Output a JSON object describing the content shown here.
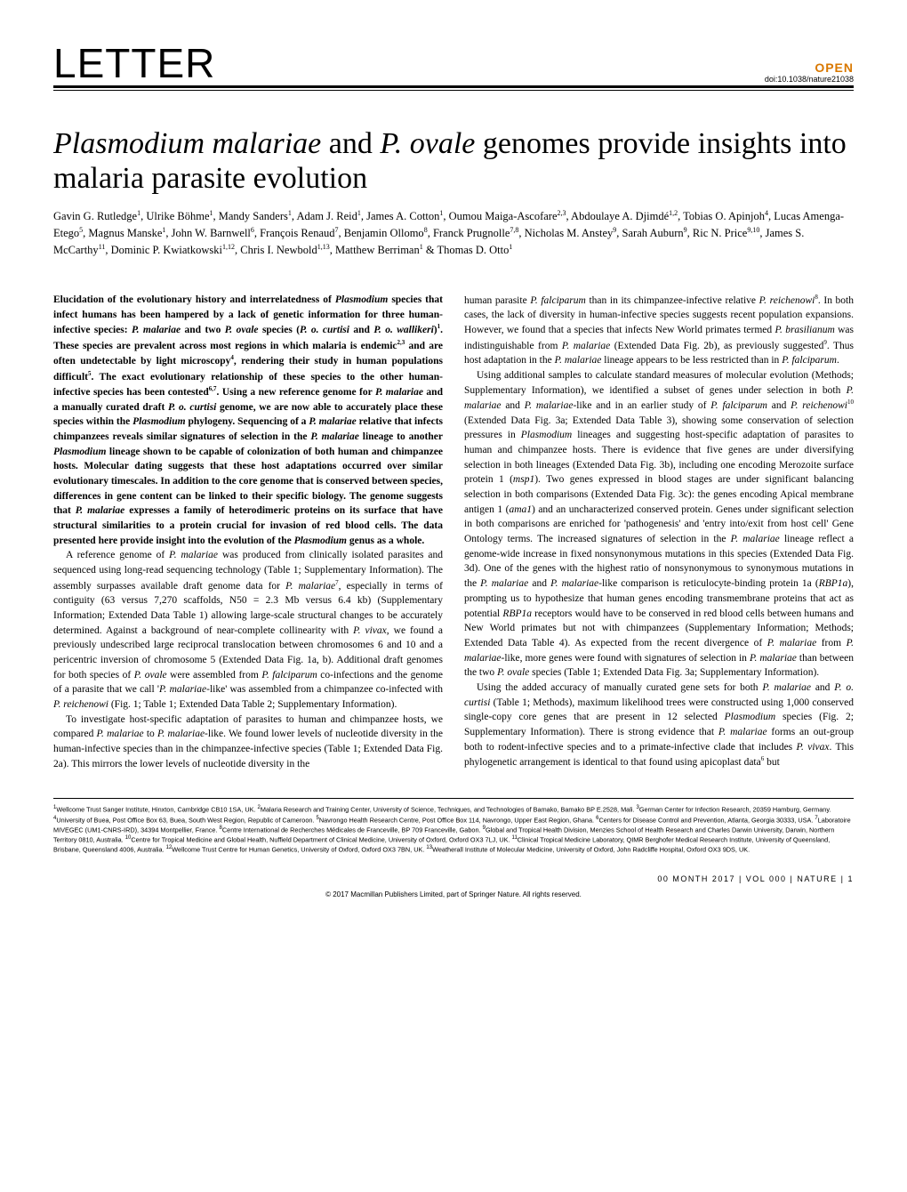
{
  "header": {
    "section_label": "LETTER",
    "open_label": "OPEN",
    "doi": "doi:10.1038/nature21038"
  },
  "title_parts": {
    "p1": "Plasmodium malariae",
    "p2": " and ",
    "p3": "P. ovale",
    "p4": " genomes provide insights into malaria parasite evolution"
  },
  "authors_html": "Gavin G. Rutledge<sup>1</sup>, Ulrike Böhme<sup>1</sup>, Mandy Sanders<sup>1</sup>, Adam J. Reid<sup>1</sup>, James A. Cotton<sup>1</sup>, Oumou Maiga-Ascofare<sup>2,3</sup>, Abdoulaye A. Djimdé<sup>1,2</sup>, Tobias O. Apinjoh<sup>4</sup>, Lucas Amenga-Etego<sup>5</sup>, Magnus Manske<sup>1</sup>, John W. Barnwell<sup>6</sup>, François Renaud<sup>7</sup>, Benjamin Ollomo<sup>8</sup>, Franck Prugnolle<sup>7,8</sup>, Nicholas M. Anstey<sup>9</sup>, Sarah Auburn<sup>9</sup>, Ric N. Price<sup>9,10</sup>, James S. McCarthy<sup>11</sup>, Dominic P. Kwiatkowski<sup>1,12</sup>, Chris I. Newbold<sup>1,13</sup>, Matthew Berriman<sup>1</sup> & Thomas D. Otto<sup>1</sup>",
  "column1": {
    "abstract_html": "Elucidation of the evolutionary history and interrelatedness of <span class=\"italic\">Plasmodium</span> species that infect humans has been hampered by a lack of genetic information for three human-infective species: <span class=\"italic\">P. malariae</span> and two <span class=\"italic\">P. ovale</span> species (<span class=\"italic\">P. o. curtisi</span> and <span class=\"italic\">P. o. wallikeri</span>)<sup>1</sup>. These species are prevalent across most regions in which malaria is endemic<sup>2,3</sup> and are often undetectable by light microscopy<sup>4</sup>, rendering their study in human populations difficult<sup>5</sup>. The exact evolutionary relationship of these species to the other human-infective species has been contested<sup>6,7</sup>. Using a new reference genome for <span class=\"italic\">P. malariae</span> and a manually curated draft <span class=\"italic\">P. o. curtisi</span> genome, we are now able to accurately place these species within the <span class=\"italic\">Plasmodium</span> phylogeny. Sequencing of a <span class=\"italic\">P. malariae</span> relative that infects chimpanzees reveals similar signatures of selection in the <span class=\"italic\">P. malariae</span> lineage to another <span class=\"italic\">Plasmodium</span> lineage shown to be capable of colonization of both human and chimpanzee hosts. Molecular dating suggests that these host adaptations occurred over similar evolutionary timescales. In addition to the core genome that is conserved between species, differences in gene content can be linked to their specific biology. The genome suggests that <span class=\"italic\">P. malariae</span> expresses a family of heterodimeric proteins on its surface that have structural similarities to a protein crucial for invasion of red blood cells. The data presented here provide insight into the evolution of the <span class=\"italic\">Plasmodium</span> genus as a whole.",
    "p2_html": "A reference genome of <span class=\"italic\">P. malariae</span> was produced from clinically isolated parasites and sequenced using long-read sequencing technology (Table 1; Supplementary Information). The assembly surpasses available draft genome data for <span class=\"italic\">P. malariae</span><sup>7</sup>, especially in terms of contiguity (63 versus 7,270 scaffolds, N50 = 2.3 Mb versus 6.4 kb) (Supplementary Information; Extended Data Table 1) allowing large-scale structural changes to be accurately determined. Against a background of near-complete collinearity with <span class=\"italic\">P. vivax</span>, we found a previously undescribed large reciprocal translocation between chromosomes 6 and 10 and a pericentric inversion of chromosome 5 (Extended Data Fig. 1a, b). Additional draft genomes for both species of <span class=\"italic\">P. ovale</span> were assembled from <span class=\"italic\">P. falciparum</span> co-infections and the genome of a parasite that we call '<span class=\"italic\">P. malariae</span>-like' was assembled from a chimpanzee co-infected with <span class=\"italic\">P. reichenowi</span> (Fig. 1; Table 1; Extended Data Table 2; Supplementary Information).",
    "p3_html": "To investigate host-specific adaptation of parasites to human and chimpanzee hosts, we compared <span class=\"italic\">P. malariae</span> to <span class=\"italic\">P. malariae-</span>like. We found lower levels of nucleotide diversity in the human-infective species than in the chimpanzee-infective species (Table 1; Extended Data Fig. 2a). This mirrors the lower levels of nucleotide diversity in the"
  },
  "column2": {
    "p1_html": "human parasite <span class=\"italic\">P. falciparum</span> than in its chimpanzee-infective relative <span class=\"italic\">P. reichenowi</span><sup>8</sup>. In both cases, the lack of diversity in human-infective species suggests recent population expansions. However, we found that a species that infects New World primates termed <span class=\"italic\">P. brasilianum</span> was indistinguishable from <span class=\"italic\">P. malariae</span> (Extended Data Fig. 2b), as previously suggested<sup>9</sup>. Thus host adaptation in the <span class=\"italic\">P. malariae</span> lineage appears to be less restricted than in <span class=\"italic\">P. falciparum</span>.",
    "p2_html": "Using additional samples to calculate standard measures of molecular evolution (Methods; Supplementary Information), we identified a subset of genes under selection in both <span class=\"italic\">P. malariae</span> and <span class=\"italic\">P. malariae</span>-like and in an earlier study of <span class=\"italic\">P. falciparum</span> and <span class=\"italic\">P. reichenowi</span><sup>10</sup> (Extended Data Fig. 3a; Extended Data Table 3), showing some conservation of selection pressures in <span class=\"italic\">Plasmodium</span> lineages and suggesting host-specific adaptation of parasites to human and chimpanzee hosts. There is evidence that five genes are under diversifying selection in both lineages (Extended Data Fig. 3b), including one encoding Merozoite surface protein 1 (<span class=\"italic\">msp1</span>). Two genes expressed in blood stages are under significant balancing selection in both comparisons (Extended Data Fig. 3c): the genes encoding Apical membrane antigen 1 (<span class=\"italic\">ama1</span>) and an uncharacterized conserved protein. Genes under significant selection in both comparisons are enriched for 'pathogenesis' and 'entry into/exit from host cell' Gene Ontology terms. The increased signatures of selection in the <span class=\"italic\">P. malariae</span> lineage reflect a genome-wide increase in fixed nonsynonymous mutations in this species (Extended Data Fig. 3d). One of the genes with the highest ratio of nonsynonymous to synonymous mutations in the <span class=\"italic\">P. malariae</span> and <span class=\"italic\">P. malariae</span>-like comparison is reticulocyte-binding protein 1a (<span class=\"italic\">RBP1a</span>), prompting us to hypothesize that human genes encoding transmembrane proteins that act as potential <span class=\"italic\">RBP1a</span> receptors would have to be conserved in red blood cells between humans and New World primates but not with chimpanzees (Supplementary Information; Methods; Extended Data Table 4). As expected from the recent divergence of <span class=\"italic\">P. malariae</span> from <span class=\"italic\">P. malariae</span>-like, more genes were found with signatures of selection in <span class=\"italic\">P. malariae</span> than between the two <span class=\"italic\">P. ovale</span> species (Table 1; Extended Data Fig. 3a; Supplementary Information).",
    "p3_html": "Using the added accuracy of manually curated gene sets for both <span class=\"italic\">P. malariae</span> and <span class=\"italic\">P. o. curtisi</span> (Table 1; Methods), maximum likelihood trees were constructed using 1,000 conserved single-copy core genes that are present in 12 selected <span class=\"italic\">Plasmodium</span> species (Fig. 2; Supplementary Information). There is strong evidence that <span class=\"italic\">P. malariae</span> forms an out-group both to rodent-infective species and to a primate-infective clade that includes <span class=\"italic\">P. vivax</span>. This phylogenetic arrangement is identical to that found using apicoplast data<sup>6</sup> but"
  },
  "affiliations_html": "<sup>1</sup>Wellcome Trust Sanger Institute, Hinxton, Cambridge CB10 1SA, UK. <sup>2</sup>Malaria Research and Training Center, University of Science, Techniques, and Technologies of Bamako, Bamako BP E.2528, Mali. <sup>3</sup>German Center for Infection Research, 20359 Hamburg, Germany. <sup>4</sup>University of Buea, Post Office Box 63, Buea, South West Region, Republic of Cameroon. <sup>5</sup>Navrongo Health Research Centre, Post Office Box 114, Navrongo, Upper East Region, Ghana. <sup>6</sup>Centers for Disease Control and Prevention, Atlanta, Georgia 30333, USA. <sup>7</sup>Laboratoire MIVEGEC (UM1-CNRS-IRD), 34394 Montpellier, France. <sup>8</sup>Centre International de Recherches Médicales de Franceville, BP 709 Franceville, Gabon. <sup>9</sup>Global and Tropical Health Division, Menzies School of Health Research and Charles Darwin University, Darwin, Northern Territory 0810, Australia. <sup>10</sup>Centre for Tropical Medicine and Global Health, Nuffield Department of Clinical Medicine, University of Oxford, Oxford OX3 7LJ, UK. <sup>11</sup>Clinical Tropical Medicine Laboratory, QIMR Berghofer Medical Research Institute, University of Queensland, Brisbane, Queensland 4006, Australia. <sup>12</sup>Wellcome Trust Centre for Human Genetics, University of Oxford, Oxford OX3 7BN, UK. <sup>13</sup>Weatherall Institute of Molecular Medicine, University of Oxford, John Radcliffe Hospital, Oxford OX3 9DS, UK.",
  "footer": {
    "pageline": "00 MONTH 2017 | VOL 000 | NATURE | 1",
    "copyright": "© 2017 Macmillan Publishers Limited, part of Springer Nature. All rights reserved."
  },
  "colors": {
    "open_color": "#d97800",
    "text_color": "#000000",
    "background": "#ffffff"
  },
  "typography": {
    "title_size_pt": 34,
    "body_size_pt": 11.5,
    "author_size_pt": 12.5,
    "affil_size_pt": 7.3
  }
}
